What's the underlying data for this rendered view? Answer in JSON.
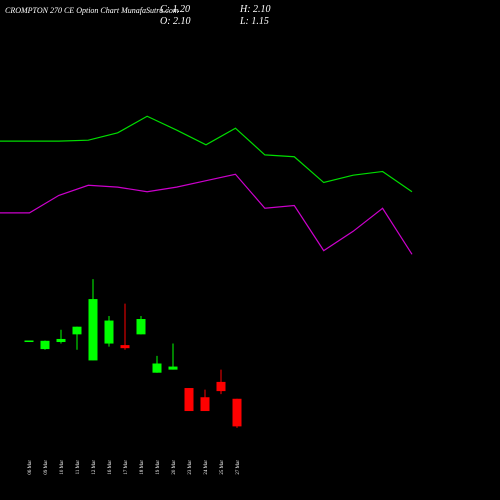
{
  "chart_data": [
    {
      "type": "line",
      "categories": [
        null,
        null,
        null,
        null,
        null,
        null,
        null,
        null,
        null,
        null,
        null,
        null,
        null,
        null,
        null
      ],
      "series": [
        {
          "color": "#00dd00",
          "values": [
            10.5,
            10.5,
            10.5,
            10.53,
            10.77,
            11.31,
            10.86,
            10.38,
            10.92,
            10.05,
            9.99,
            9.15,
            9.39,
            9.51,
            8.85
          ]
        },
        {
          "color": "#cc00cc",
          "values": [
            8.16,
            8.16,
            8.73,
            9.06,
            9.0,
            8.85,
            9.0,
            9.21,
            9.42,
            8.31,
            8.4,
            6.93,
            7.56,
            8.31,
            6.81
          ]
        }
      ],
      "ylim": [
        -1.2,
        15.1
      ]
    },
    {
      "type": "candlestick",
      "title": "CROMPTON 270 CE Option Chart MunafaSutra.com",
      "annotations": [
        "C: 1.20",
        "H: 2.10",
        "O: 2.10",
        "L: 1.15"
      ],
      "categories": [
        "06 Mar",
        "09 Mar",
        "10 Mar",
        "11 Mar",
        "12 Mar",
        "16 Mar",
        "17 Mar",
        "18 Mar",
        "19 Mar",
        "20 Mar",
        "23 Mar",
        "24 Mar",
        "25 Mar",
        "27 Mar"
      ],
      "open": [
        3.95,
        3.72,
        3.95,
        4.2,
        3.35,
        3.9,
        3.85,
        4.2,
        2.95,
        3.05,
        2.45,
        2.15,
        2.65,
        2.1
      ],
      "high": [
        4.0,
        4.0,
        4.35,
        4.45,
        6.0,
        4.8,
        5.2,
        4.8,
        3.5,
        3.9,
        2.45,
        2.4,
        3.05,
        2.1
      ],
      "low": [
        3.95,
        3.7,
        3.9,
        3.7,
        3.35,
        3.8,
        3.7,
        4.2,
        2.95,
        3.05,
        1.7,
        1.7,
        2.25,
        1.15
      ],
      "close": [
        4.0,
        3.99,
        4.05,
        4.45,
        5.35,
        4.65,
        3.75,
        4.7,
        3.25,
        3.15,
        1.7,
        1.7,
        2.35,
        1.2
      ],
      "up_color": "#00ff00",
      "down_color": "#ff0000",
      "ylim": [
        -1.2,
        15.1
      ]
    }
  ]
}
